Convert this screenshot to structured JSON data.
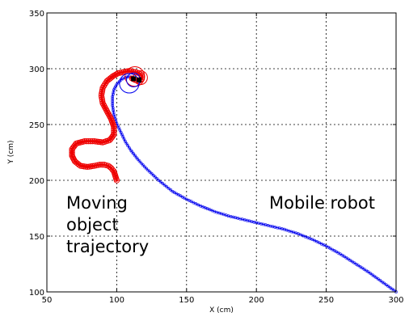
{
  "chart_data": {
    "type": "line",
    "title": "",
    "xlabel": "X  (cm)",
    "ylabel": "Y  (cm)",
    "xlim": [
      50,
      300
    ],
    "ylim": [
      100,
      350
    ],
    "grid": true,
    "x_ticks": [
      50,
      100,
      150,
      200,
      250,
      300
    ],
    "y_ticks": [
      100,
      150,
      200,
      250,
      300,
      350
    ],
    "annotations": [
      {
        "lines": [
          "Moving",
          "object",
          "trajectory"
        ],
        "near": "lower-left"
      },
      {
        "lines": [
          "Mobile robot"
        ],
        "near": "center-right"
      }
    ],
    "series": [
      {
        "color": "#0000ee",
        "marker": "o",
        "x": [
          300,
          290,
          280,
          270,
          260,
          250,
          240,
          230,
          220,
          210,
          200,
          190,
          180,
          170,
          160,
          150,
          140,
          130,
          125,
          120,
          115,
          110,
          106,
          103,
          100,
          98,
          97,
          97,
          98,
          100,
          103,
          106,
          109,
          111,
          112
        ],
        "y": [
          100,
          109,
          118,
          126,
          134,
          141,
          147,
          152,
          156,
          159,
          162,
          165,
          168,
          172,
          177,
          183,
          190,
          200,
          206,
          212,
          219,
          227,
          235,
          243,
          251,
          259,
          267,
          275,
          281,
          286,
          290,
          292,
          293,
          292,
          291
        ]
      },
      {
        "color": "#ee0000",
        "marker": "o",
        "x": [
          100,
          99,
          98,
          96,
          94,
          91,
          88,
          84,
          79,
          74,
          70,
          68,
          68,
          71,
          77,
          84,
          90,
          95,
          98,
          98,
          96,
          93,
          90,
          89,
          90,
          93,
          97,
          101,
          105,
          109,
          113,
          116,
          118,
          118,
          116,
          113,
          110
        ],
        "y": [
          200,
          204,
          208,
          211,
          213,
          214,
          214,
          213,
          212,
          213,
          217,
          222,
          228,
          233,
          235,
          235,
          234,
          236,
          241,
          248,
          255,
          262,
          269,
          276,
          283,
          289,
          293,
          296,
          297,
          298,
          297,
          296,
          294,
          291,
          289,
          290,
          292
        ]
      }
    ],
    "circles": [
      {
        "color": "#ee0000",
        "cx": 113,
        "cy": 293,
        "r": 7
      },
      {
        "color": "#ee0000",
        "cx": 117,
        "cy": 292,
        "r": 5
      },
      {
        "color": "#0000ee",
        "cx": 112,
        "cy": 290,
        "r": 5
      },
      {
        "color": "#0000ee",
        "cx": 109,
        "cy": 287,
        "r": 7
      }
    ],
    "end_markers": [
      {
        "color": "#000000",
        "x": 112,
        "y": 291
      },
      {
        "color": "#000000",
        "x": 116,
        "y": 290
      }
    ]
  }
}
